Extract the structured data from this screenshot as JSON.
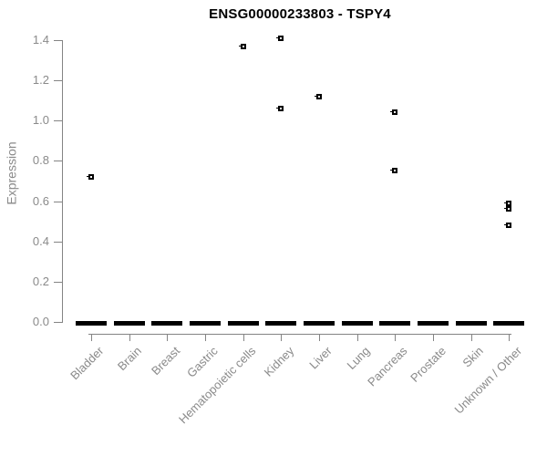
{
  "chart_data": {
    "type": "boxplot",
    "title": "ENSG00000233803 - TSPY4",
    "ylabel": "Expression",
    "xlabel": "",
    "ylim": [
      0.0,
      1.4
    ],
    "ytick_labels": [
      "0.0",
      "0.2",
      "0.4",
      "0.6",
      "0.8",
      "1.0",
      "1.2",
      "1.4"
    ],
    "grid": false,
    "legend": "none",
    "categories": [
      "Bladder",
      "Brain",
      "Breast",
      "Gastric",
      "Hematopoietic cells",
      "Kidney",
      "Liver",
      "Lung",
      "Pancreas",
      "Prostate",
      "Skin",
      "Unknown / Other"
    ],
    "series": [
      {
        "category": "Bladder",
        "median": 0.0,
        "points": [
          0.72
        ]
      },
      {
        "category": "Brain",
        "median": 0.0,
        "points": []
      },
      {
        "category": "Breast",
        "median": 0.0,
        "points": []
      },
      {
        "category": "Gastric",
        "median": 0.0,
        "points": []
      },
      {
        "category": "Hematopoietic cells",
        "median": 0.0,
        "points": [
          1.37
        ]
      },
      {
        "category": "Kidney",
        "median": 0.0,
        "points": [
          1.41,
          1.06
        ]
      },
      {
        "category": "Liver",
        "median": 0.0,
        "points": [
          1.12
        ]
      },
      {
        "category": "Lung",
        "median": 0.0,
        "points": []
      },
      {
        "category": "Pancreas",
        "median": 0.0,
        "points": [
          1.04,
          0.75
        ]
      },
      {
        "category": "Prostate",
        "median": 0.0,
        "points": []
      },
      {
        "category": "Skin",
        "median": 0.0,
        "points": []
      },
      {
        "category": "Unknown / Other",
        "median": 0.0,
        "points": [
          0.59,
          0.56,
          0.48
        ]
      }
    ],
    "colors": {
      "title": "#000000",
      "axis_text": "#8a8a8a",
      "axis_line": "#848484",
      "marker": "#000000",
      "background": "#ffffff"
    }
  }
}
